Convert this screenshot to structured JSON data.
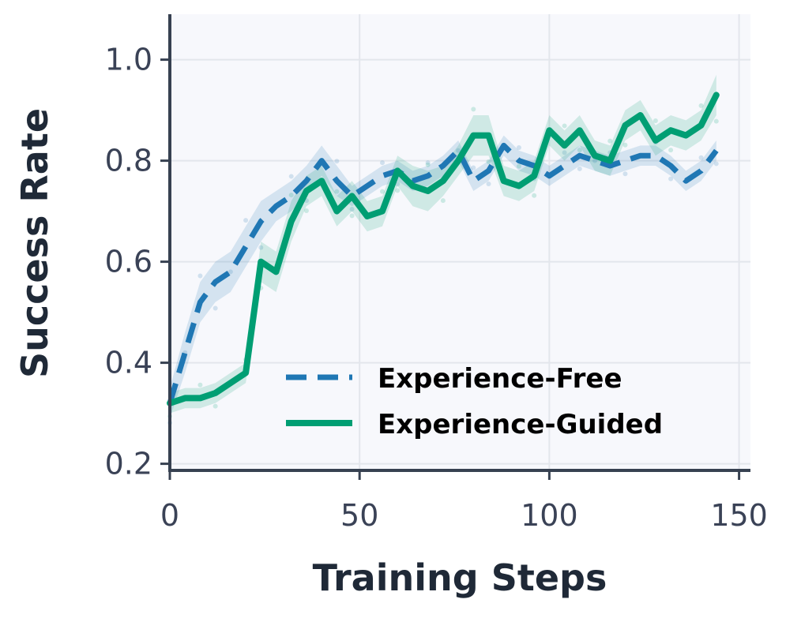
{
  "chart_data": {
    "type": "line",
    "xlabel": "Training Steps",
    "ylabel": "Success Rate",
    "xlim": [
      0,
      153
    ],
    "ylim": [
      0.19,
      1.09
    ],
    "xticks": [
      0,
      50,
      100,
      150
    ],
    "yticks": [
      0.2,
      0.4,
      0.6,
      0.8,
      1.0
    ],
    "xtick_labels": [
      "0",
      "50",
      "100",
      "150"
    ],
    "ytick_labels": [
      "0.2",
      "0.4",
      "0.6",
      "0.8",
      "1.0"
    ],
    "grid": true,
    "legend_position": "lower-right",
    "x": [
      0,
      4,
      8,
      12,
      16,
      20,
      24,
      28,
      32,
      36,
      40,
      44,
      48,
      52,
      56,
      60,
      64,
      68,
      72,
      76,
      80,
      84,
      88,
      92,
      96,
      100,
      104,
      108,
      112,
      116,
      120,
      124,
      128,
      132,
      136,
      140,
      144
    ],
    "series": [
      {
        "name": "Experience-Free",
        "style": "dashed",
        "color": "#1f77b4",
        "values": [
          0.32,
          0.42,
          0.52,
          0.56,
          0.58,
          0.63,
          0.68,
          0.71,
          0.73,
          0.76,
          0.8,
          0.76,
          0.73,
          0.75,
          0.77,
          0.78,
          0.76,
          0.77,
          0.79,
          0.82,
          0.76,
          0.78,
          0.83,
          0.8,
          0.79,
          0.77,
          0.79,
          0.81,
          0.8,
          0.79,
          0.8,
          0.81,
          0.81,
          0.79,
          0.76,
          0.78,
          0.82
        ],
        "band": [
          0.03,
          0.04,
          0.04,
          0.04,
          0.04,
          0.04,
          0.04,
          0.03,
          0.03,
          0.03,
          0.03,
          0.03,
          0.02,
          0.02,
          0.02,
          0.02,
          0.02,
          0.02,
          0.02,
          0.02,
          0.02,
          0.02,
          0.02,
          0.02,
          0.02,
          0.02,
          0.02,
          0.02,
          0.02,
          0.02,
          0.02,
          0.02,
          0.02,
          0.02,
          0.02,
          0.02,
          0.02
        ]
      },
      {
        "name": "Experience-Guided",
        "style": "solid",
        "color": "#009e73",
        "values": [
          0.32,
          0.33,
          0.33,
          0.34,
          0.36,
          0.38,
          0.6,
          0.58,
          0.68,
          0.74,
          0.76,
          0.7,
          0.73,
          0.69,
          0.7,
          0.78,
          0.75,
          0.74,
          0.76,
          0.8,
          0.85,
          0.85,
          0.76,
          0.75,
          0.77,
          0.86,
          0.83,
          0.86,
          0.81,
          0.8,
          0.87,
          0.89,
          0.84,
          0.86,
          0.85,
          0.87,
          0.93
        ],
        "band": [
          0.02,
          0.02,
          0.02,
          0.02,
          0.02,
          0.02,
          0.04,
          0.04,
          0.04,
          0.03,
          0.03,
          0.03,
          0.03,
          0.03,
          0.03,
          0.03,
          0.04,
          0.04,
          0.03,
          0.03,
          0.04,
          0.04,
          0.03,
          0.03,
          0.03,
          0.03,
          0.03,
          0.03,
          0.03,
          0.03,
          0.03,
          0.03,
          0.03,
          0.03,
          0.03,
          0.03,
          0.04
        ]
      }
    ]
  }
}
